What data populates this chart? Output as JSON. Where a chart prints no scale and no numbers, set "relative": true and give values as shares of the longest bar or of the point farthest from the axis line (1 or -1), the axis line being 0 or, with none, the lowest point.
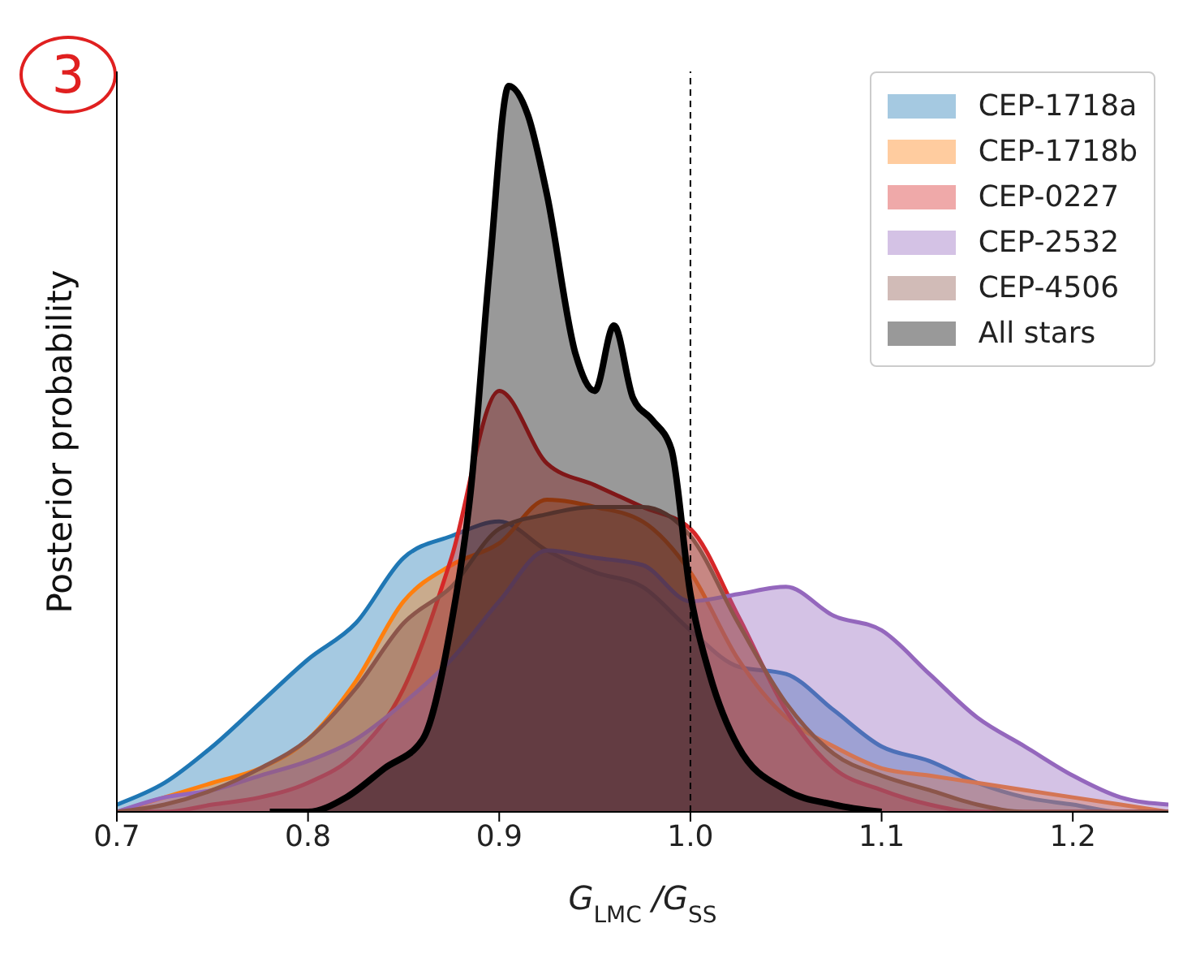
{
  "chart_data": {
    "type": "area",
    "relative": true,
    "xlabel": "G$_{LMC}$/G$_{SS}$",
    "ylabel": "Posterior probability",
    "annotations": [
      "3"
    ],
    "xlim": [
      0.7,
      1.25
    ],
    "xticks": [
      {
        "value": 0.7,
        "label": "0.7"
      },
      {
        "value": 0.8,
        "label": "0.8"
      },
      {
        "value": 0.9,
        "label": "0.9"
      },
      {
        "value": 1,
        "label": "1.0"
      },
      {
        "value": 1.1,
        "label": "1.1"
      },
      {
        "value": 1.2,
        "label": "1.2"
      }
    ],
    "legend": "top right",
    "ref_lines": [
      {
        "axis": "x",
        "value": 1,
        "color": "#000000",
        "line_style": "dashed"
      }
    ],
    "series": [
      {
        "name": "CEP-1718a",
        "color": "#1f77b4",
        "x": [
          0.7,
          0.725,
          0.75,
          0.775,
          0.8,
          0.825,
          0.85,
          0.875,
          0.9,
          0.925,
          0.95,
          0.975,
          1,
          1.025,
          1.05,
          1.075,
          1.1,
          1.125,
          1.15,
          1.175,
          1.2,
          1.225,
          1.25
        ],
        "values": [
          0.01,
          0.04,
          0.09,
          0.15,
          0.21,
          0.26,
          0.35,
          0.38,
          0.4,
          0.36,
          0.33,
          0.31,
          0.25,
          0.2,
          0.19,
          0.14,
          0.09,
          0.07,
          0.04,
          0.02,
          0.01,
          0,
          0
        ]
      },
      {
        "name": "CEP-1718b",
        "color": "#ff7f0e",
        "x": [
          0.7,
          0.725,
          0.75,
          0.775,
          0.8,
          0.825,
          0.85,
          0.875,
          0.9,
          0.925,
          0.95,
          0.975,
          1,
          1.025,
          1.05,
          1.075,
          1.1,
          1.125,
          1.15,
          1.175,
          1.2,
          1.225,
          1.25
        ],
        "values": [
          0,
          0.02,
          0.04,
          0.06,
          0.1,
          0.18,
          0.29,
          0.34,
          0.37,
          0.43,
          0.42,
          0.4,
          0.33,
          0.21,
          0.13,
          0.09,
          0.06,
          0.05,
          0.04,
          0.03,
          0.02,
          0.01,
          0
        ]
      },
      {
        "name": "CEP-0227",
        "color": "#d62728",
        "x": [
          0.7,
          0.725,
          0.75,
          0.775,
          0.8,
          0.825,
          0.85,
          0.875,
          0.9,
          0.925,
          0.95,
          0.975,
          1,
          1.025,
          1.05,
          1.075,
          1.1,
          1.125,
          1.15,
          1.175,
          1.2,
          1.225,
          1.25
        ],
        "values": [
          0,
          0,
          0.01,
          0.02,
          0.04,
          0.08,
          0.17,
          0.35,
          0.58,
          0.48,
          0.45,
          0.42,
          0.39,
          0.27,
          0.14,
          0.06,
          0.03,
          0.01,
          0,
          0,
          0,
          0,
          0
        ]
      },
      {
        "name": "CEP-2532",
        "color": "#9467bd",
        "x": [
          0.7,
          0.725,
          0.75,
          0.775,
          0.8,
          0.825,
          0.85,
          0.875,
          0.9,
          0.925,
          0.95,
          0.975,
          1,
          1.025,
          1.05,
          1.075,
          1.1,
          1.125,
          1.15,
          1.175,
          1.2,
          1.225,
          1.25
        ],
        "values": [
          0,
          0.02,
          0.03,
          0.05,
          0.07,
          0.1,
          0.15,
          0.21,
          0.29,
          0.36,
          0.35,
          0.34,
          0.29,
          0.3,
          0.31,
          0.27,
          0.25,
          0.19,
          0.13,
          0.09,
          0.05,
          0.02,
          0.01
        ]
      },
      {
        "name": "CEP-4506",
        "color": "#8c564b",
        "x": [
          0.7,
          0.725,
          0.75,
          0.775,
          0.8,
          0.825,
          0.85,
          0.875,
          0.9,
          0.925,
          0.95,
          0.975,
          1,
          1.025,
          1.05,
          1.075,
          1.1,
          1.125,
          1.15,
          1.175,
          1.2,
          1.225,
          1.25
        ],
        "values": [
          0,
          0.01,
          0.03,
          0.06,
          0.1,
          0.17,
          0.26,
          0.31,
          0.39,
          0.41,
          0.42,
          0.42,
          0.38,
          0.26,
          0.15,
          0.08,
          0.05,
          0.03,
          0.01,
          0,
          0,
          0,
          0
        ]
      },
      {
        "name": "All stars",
        "color": "#000000",
        "x": [
          0.78,
          0.8,
          0.82,
          0.84,
          0.86,
          0.875,
          0.885,
          0.895,
          0.905,
          0.915,
          0.925,
          0.94,
          0.95,
          0.96,
          0.97,
          0.98,
          0.99,
          1,
          1.01,
          1.025,
          1.05,
          1.075,
          1.1
        ],
        "values": [
          0,
          0,
          0.02,
          0.06,
          0.1,
          0.26,
          0.44,
          0.75,
          1,
          0.96,
          0.85,
          0.63,
          0.58,
          0.67,
          0.57,
          0.54,
          0.5,
          0.3,
          0.19,
          0.09,
          0.03,
          0.01,
          0
        ]
      }
    ]
  }
}
